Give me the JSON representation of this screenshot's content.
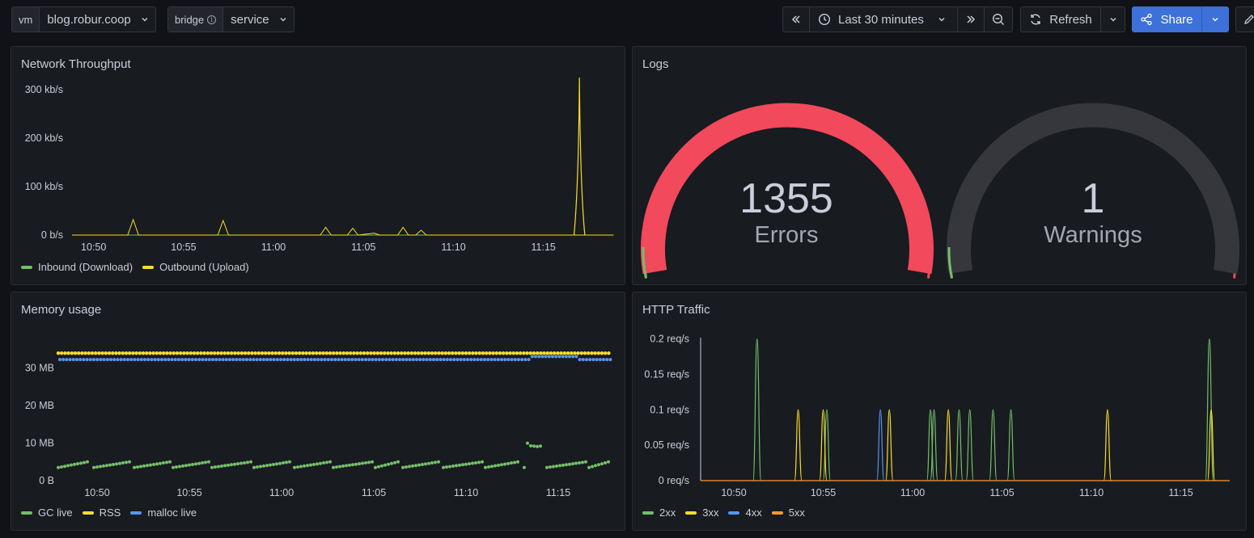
{
  "variables": [
    {
      "label": "vm",
      "value": "blog.robur.coop",
      "has_info": false
    },
    {
      "label": "bridge",
      "value": "service",
      "has_info": true
    }
  ],
  "toolbar": {
    "time_range": "Last 30 minutes",
    "refresh_label": "Refresh",
    "share_label": "Share"
  },
  "colors": {
    "green": "#73bf69",
    "yellow": "#fade2a",
    "blue": "#5794f2",
    "orange": "#ff9830",
    "red": "#f2495c"
  },
  "panels": {
    "network": {
      "title": "Network Throughput",
      "legend": [
        "Inbound (Download)",
        "Outbound (Upload)"
      ]
    },
    "logs": {
      "title": "Logs",
      "errors_value": "1355",
      "errors_label": "Errors",
      "warnings_value": "1",
      "warnings_label": "Warnings"
    },
    "memory": {
      "title": "Memory usage",
      "legend": [
        "GC live",
        "RSS",
        "malloc live"
      ]
    },
    "http": {
      "title": "HTTP Traffic",
      "legend": [
        "2xx",
        "3xx",
        "4xx",
        "5xx"
      ]
    }
  },
  "chart_data": [
    {
      "type": "line",
      "name": "network",
      "x_ticks": [
        "10:50",
        "10:55",
        "11:00",
        "11:05",
        "11:10",
        "11:15"
      ],
      "y_ticks": [
        "0 b/s",
        "100 kb/s",
        "200 kb/s",
        "300 kb/s"
      ],
      "ylim": [
        0,
        360
      ],
      "xlim_minutes": [
        -1.2,
        28.7
      ],
      "series": [
        {
          "name": "Inbound (Download)",
          "points": [
            [
              -1.2,
              0
            ],
            [
              28.7,
              0
            ]
          ]
        },
        {
          "name": "Outbound (Upload)",
          "points": [
            [
              -1.2,
              0
            ],
            [
              1.9,
              0
            ],
            [
              2.2,
              32
            ],
            [
              2.5,
              0
            ],
            [
              6.9,
              0
            ],
            [
              7.2,
              30
            ],
            [
              7.5,
              0
            ],
            [
              12.6,
              0
            ],
            [
              12.9,
              16
            ],
            [
              13.2,
              0
            ],
            [
              14.1,
              0
            ],
            [
              14.4,
              14
            ],
            [
              14.7,
              0
            ],
            [
              15.6,
              4
            ],
            [
              15.9,
              0
            ],
            [
              16.9,
              0
            ],
            [
              17.2,
              16
            ],
            [
              17.5,
              0
            ],
            [
              17.9,
              0
            ],
            [
              18.2,
              10
            ],
            [
              18.5,
              0
            ],
            [
              28.9,
              0
            ]
          ],
          "spike": {
            "at": 27.0,
            "value": 325
          }
        }
      ]
    },
    {
      "type": "scatter",
      "name": "memory",
      "x_ticks": [
        "10:50",
        "10:55",
        "11:00",
        "11:05",
        "11:10",
        "11:15"
      ],
      "y_ticks": [
        "0 B",
        "10 MB",
        "20 MB",
        "30 MB"
      ],
      "ylim": [
        0,
        38
      ],
      "series": [
        {
          "name": "RSS",
          "value_mb": 34
        },
        {
          "name": "malloc live",
          "value_mb": 32.3
        },
        {
          "name": "GC live",
          "sawtooth_min_mb": 3.5,
          "sawtooth_max_mb": 5.0
        }
      ]
    },
    {
      "type": "line",
      "name": "http",
      "x_ticks": [
        "10:50",
        "10:55",
        "11:00",
        "11:05",
        "11:10",
        "11:15"
      ],
      "y_ticks": [
        "0 req/s",
        "0.05 req/s",
        "0.1 req/s",
        "0.15 req/s",
        "0.2 req/s"
      ],
      "ylim": [
        0,
        0.22
      ],
      "series": [
        {
          "name": "2xx",
          "spikes": [
            [
              1.3,
              0.2
            ],
            [
              5.2,
              0.1
            ],
            [
              11.0,
              0.1
            ],
            [
              11.2,
              0.1
            ],
            [
              12.6,
              0.1
            ],
            [
              13.2,
              0.1
            ],
            [
              14.5,
              0.1
            ],
            [
              15.5,
              0.1
            ],
            [
              26.6,
              0.2
            ]
          ]
        },
        {
          "name": "3xx",
          "spikes": [
            [
              3.6,
              0.1
            ],
            [
              5.0,
              0.1
            ],
            [
              8.7,
              0.1
            ],
            [
              12.0,
              0.1
            ],
            [
              20.9,
              0.1
            ],
            [
              26.7,
              0.1
            ],
            [
              29.6,
              0.1
            ]
          ]
        },
        {
          "name": "4xx",
          "spikes": [
            [
              8.2,
              0.1
            ]
          ]
        },
        {
          "name": "5xx",
          "spikes": []
        }
      ]
    },
    {
      "type": "gauge",
      "name": "logs",
      "gauges": [
        {
          "label": "Errors",
          "value": 1355
        },
        {
          "label": "Warnings",
          "value": 1
        }
      ]
    }
  ]
}
